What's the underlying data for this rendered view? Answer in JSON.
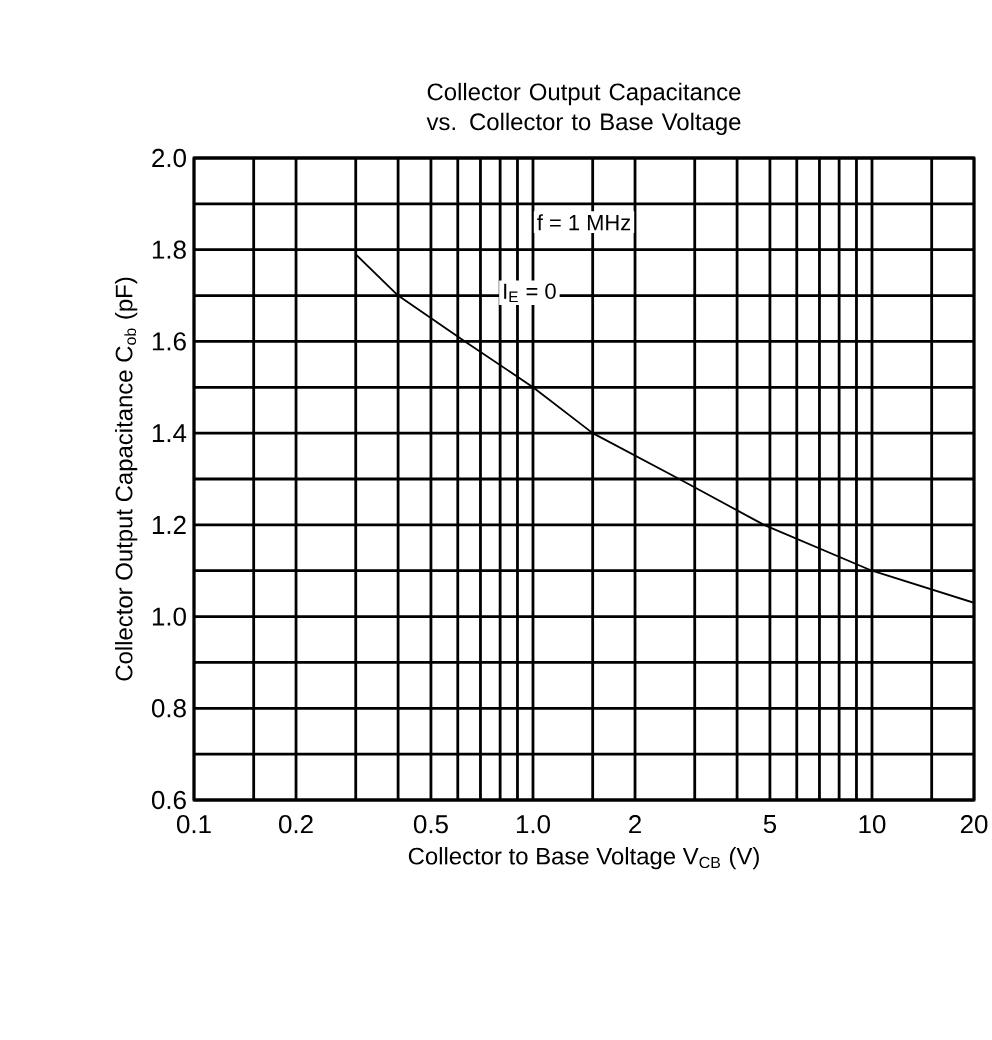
{
  "chart_data": {
    "type": "line",
    "title": "Collector Output Capacitance vs. Collector to Base Voltage",
    "xlabel": "Collector to Base Voltage  V$_{CB}$  (V)",
    "ylabel": "Collector Output Capacitance C$_{ob}$  (pF)",
    "annotations": [
      "f = 1 MHz",
      "I$_{E}$ = 0"
    ],
    "log": "x",
    "grid": true,
    "marker": "none",
    "line_style": "solid",
    "xlim": [
      0.1,
      20
    ],
    "ylim": [
      0.6,
      2.0
    ],
    "xticks": [
      {
        "value": 0.1,
        "label": "0.1"
      },
      {
        "value": 0.15,
        "label": null
      },
      {
        "value": 0.2,
        "label": "0.2"
      },
      {
        "value": 0.3,
        "label": null
      },
      {
        "value": 0.4,
        "label": null
      },
      {
        "value": 0.5,
        "label": "0.5"
      },
      {
        "value": 0.6,
        "label": null
      },
      {
        "value": 0.7,
        "label": null
      },
      {
        "value": 0.8,
        "label": null
      },
      {
        "value": 0.9,
        "label": null
      },
      {
        "value": 1.0,
        "label": "1.0"
      },
      {
        "value": 1.5,
        "label": null
      },
      2,
      {
        "value": 3,
        "label": null
      },
      {
        "value": 4,
        "label": null
      },
      5,
      {
        "value": 6,
        "label": null
      },
      {
        "value": 7,
        "label": null
      },
      {
        "value": 8,
        "label": null
      },
      {
        "value": 9,
        "label": null
      },
      10,
      {
        "value": 15,
        "label": null
      },
      20
    ],
    "yticks": [
      {
        "value": 0.6,
        "label": "0.6"
      },
      {
        "value": 0.7,
        "label": null
      },
      {
        "value": 0.8,
        "label": "0.8"
      },
      {
        "value": 0.9,
        "label": null
      },
      {
        "value": 1.0,
        "label": "1.0"
      },
      {
        "value": 1.1,
        "label": null
      },
      {
        "value": 1.2,
        "label": "1.2"
      },
      {
        "value": 1.3,
        "label": null
      },
      {
        "value": 1.4,
        "label": "1.4"
      },
      {
        "value": 1.5,
        "label": null
      },
      {
        "value": 1.6,
        "label": "1.6"
      },
      {
        "value": 1.7,
        "label": null
      },
      {
        "value": 1.8,
        "label": "1.8"
      },
      {
        "value": 1.9,
        "label": null
      },
      {
        "value": 2.0,
        "label": "2.0"
      }
    ],
    "series": [
      {
        "color": "#000000",
        "x": [
          0.3,
          0.4,
          0.63,
          1.0,
          1.5,
          2.7,
          4.8,
          10,
          20
        ],
        "values": [
          1.79,
          1.7,
          1.6,
          1.5,
          1.4,
          1.3,
          1.2,
          1.1,
          1.03
        ]
      }
    ]
  }
}
